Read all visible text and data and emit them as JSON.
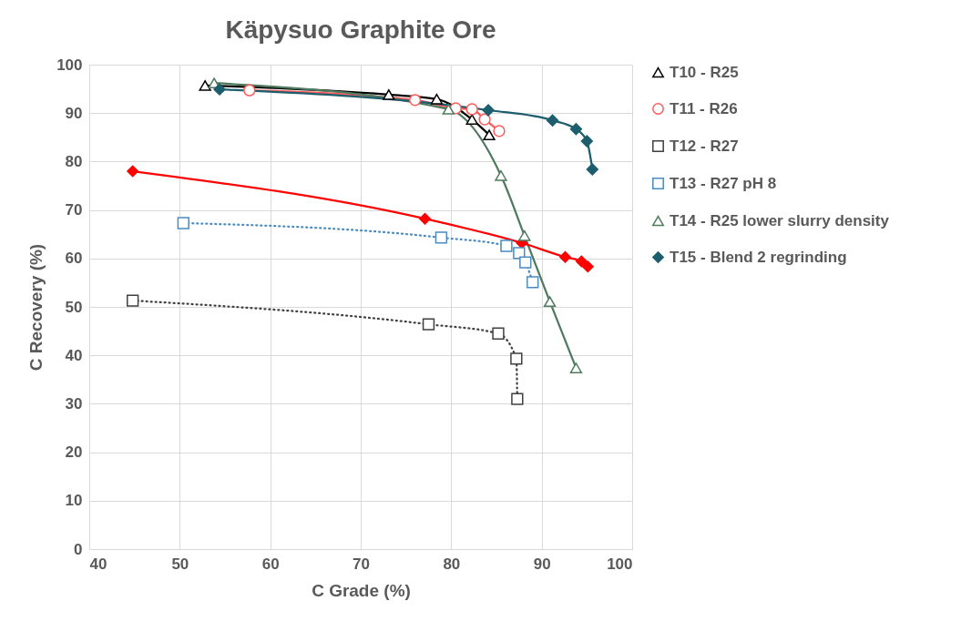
{
  "chart_data": {
    "type": "line",
    "title": "Käpysuo Graphite Ore",
    "xlabel": "C Grade (%)",
    "ylabel": "C Recovery (%)",
    "xlim": [
      40,
      100
    ],
    "xticks": [
      40,
      50,
      60,
      70,
      80,
      90,
      100
    ],
    "ylim": [
      0,
      100
    ],
    "yticks": [
      0,
      10,
      20,
      30,
      40,
      50,
      60,
      70,
      80,
      90,
      100
    ],
    "grid": true,
    "legend": "right",
    "series": [
      {
        "name": "T10 - R25",
        "color": "#000000",
        "marker": "triangle",
        "line_style": "solid",
        "x": [
          52.8,
          73.1,
          78.4,
          82.3,
          84.2
        ],
        "values": [
          95.7,
          93.8,
          92.9,
          88.7,
          85.5
        ]
      },
      {
        "name": "T11 - R26",
        "color": "#ff5b5b",
        "marker": "circle",
        "line_style": "solid",
        "x": [
          57.7,
          76.0,
          80.5,
          82.3,
          83.7,
          85.3
        ],
        "values": [
          94.7,
          92.7,
          91.0,
          90.8,
          88.7,
          86.3
        ]
      },
      {
        "name": "T12 - R27",
        "color": "#404040",
        "marker": "square",
        "line_style": "dotted",
        "x": [
          44.8,
          77.5,
          85.2,
          87.2,
          87.3
        ],
        "values": [
          51.3,
          46.4,
          44.5,
          39.3,
          31.0
        ]
      },
      {
        "name": "T13 - R27 pH 8",
        "color": "#4a8bc2",
        "marker": "square",
        "line_style": "dotted",
        "x": [
          50.4,
          78.9,
          86.1,
          87.5,
          88.2,
          89.0
        ],
        "values": [
          67.3,
          64.3,
          62.6,
          61.1,
          59.2,
          55.1
        ]
      },
      {
        "name": "T14 - R25 lower slurry density",
        "color": "#4f7a5f",
        "marker": "triangle",
        "line_style": "solid",
        "x": [
          53.8,
          79.7,
          85.5,
          88.1,
          90.9,
          93.8
        ],
        "values": [
          96.2,
          90.8,
          77.1,
          64.7,
          51.1,
          37.4
        ]
      },
      {
        "name": "T15 - Blend 2 regrinding",
        "color": "#1d5e6e",
        "marker": "diamond",
        "line_style": "solid",
        "x": [
          54.4,
          84.1,
          91.2,
          93.8,
          95.0,
          95.6
        ],
        "values": [
          94.9,
          90.6,
          88.5,
          86.7,
          84.2,
          78.4
        ]
      },
      {
        "color": "#ff0000",
        "marker": "diamond",
        "line_style": "solid",
        "x": [
          44.8,
          77.1,
          87.8,
          92.6,
          94.4,
          95.1
        ],
        "values": [
          78.0,
          68.2,
          63.2,
          60.3,
          59.4,
          58.3
        ]
      }
    ]
  }
}
